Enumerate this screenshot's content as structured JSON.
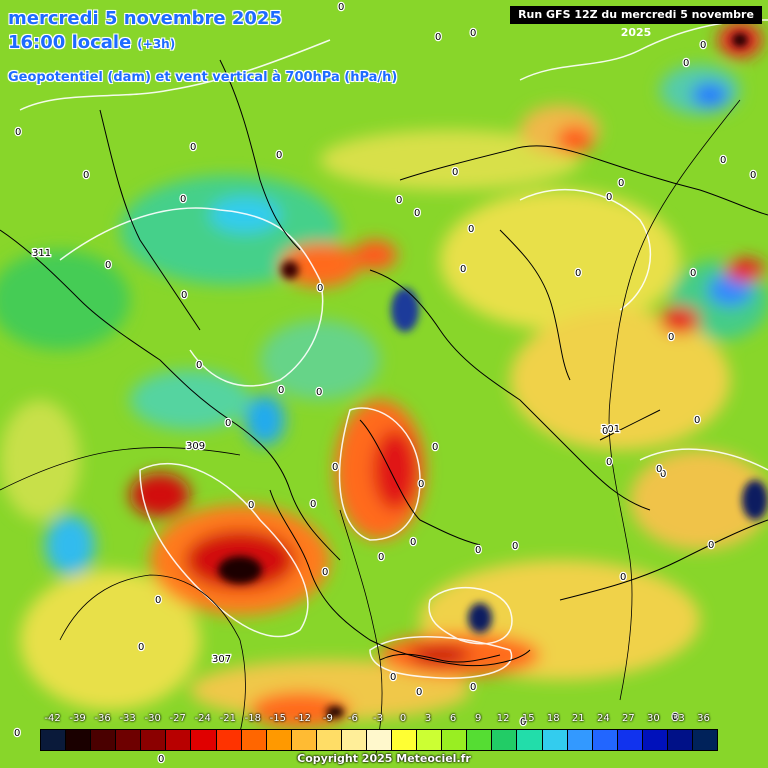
{
  "header": {
    "date_line": "mercredi 5 novembre 2025",
    "time_line": "16:00 locale",
    "lead_time": "(+3h)",
    "variable_line": "Geopotentiel (dam) et vent vertical à 700hPa (hPa/h)",
    "run_label": "Run GFS 12Z du mercredi 5 novembre 2025"
  },
  "map": {
    "contour_labels": [
      "311",
      "309",
      "307",
      "301"
    ],
    "zero_labels": [
      "0"
    ]
  },
  "legend": {
    "labels": [
      "-42",
      "-39",
      "-36",
      "-33",
      "-30",
      "-27",
      "-24",
      "-21",
      "-18",
      "-15",
      "-12",
      "-9",
      "-6",
      "-3",
      "0",
      "3",
      "6",
      "9",
      "12",
      "15",
      "18",
      "21",
      "24",
      "27",
      "30",
      "33",
      "36"
    ],
    "colors": [
      "#0a1a3a",
      "#1a0000",
      "#4a0000",
      "#6e0000",
      "#8b0000",
      "#b80000",
      "#e00000",
      "#ff3300",
      "#ff6600",
      "#ff9900",
      "#ffbb33",
      "#ffdd66",
      "#ffee99",
      "#fff8cc",
      "#ffff33",
      "#ccff33",
      "#99ee22",
      "#55dd33",
      "#22cc66",
      "#22ddaa",
      "#33ccee",
      "#3399ff",
      "#2266ff",
      "#1133ee",
      "#0011bb",
      "#001188",
      "#00225a"
    ]
  },
  "footer": {
    "copyright": "Copyright 2025 Meteociel.fr"
  }
}
